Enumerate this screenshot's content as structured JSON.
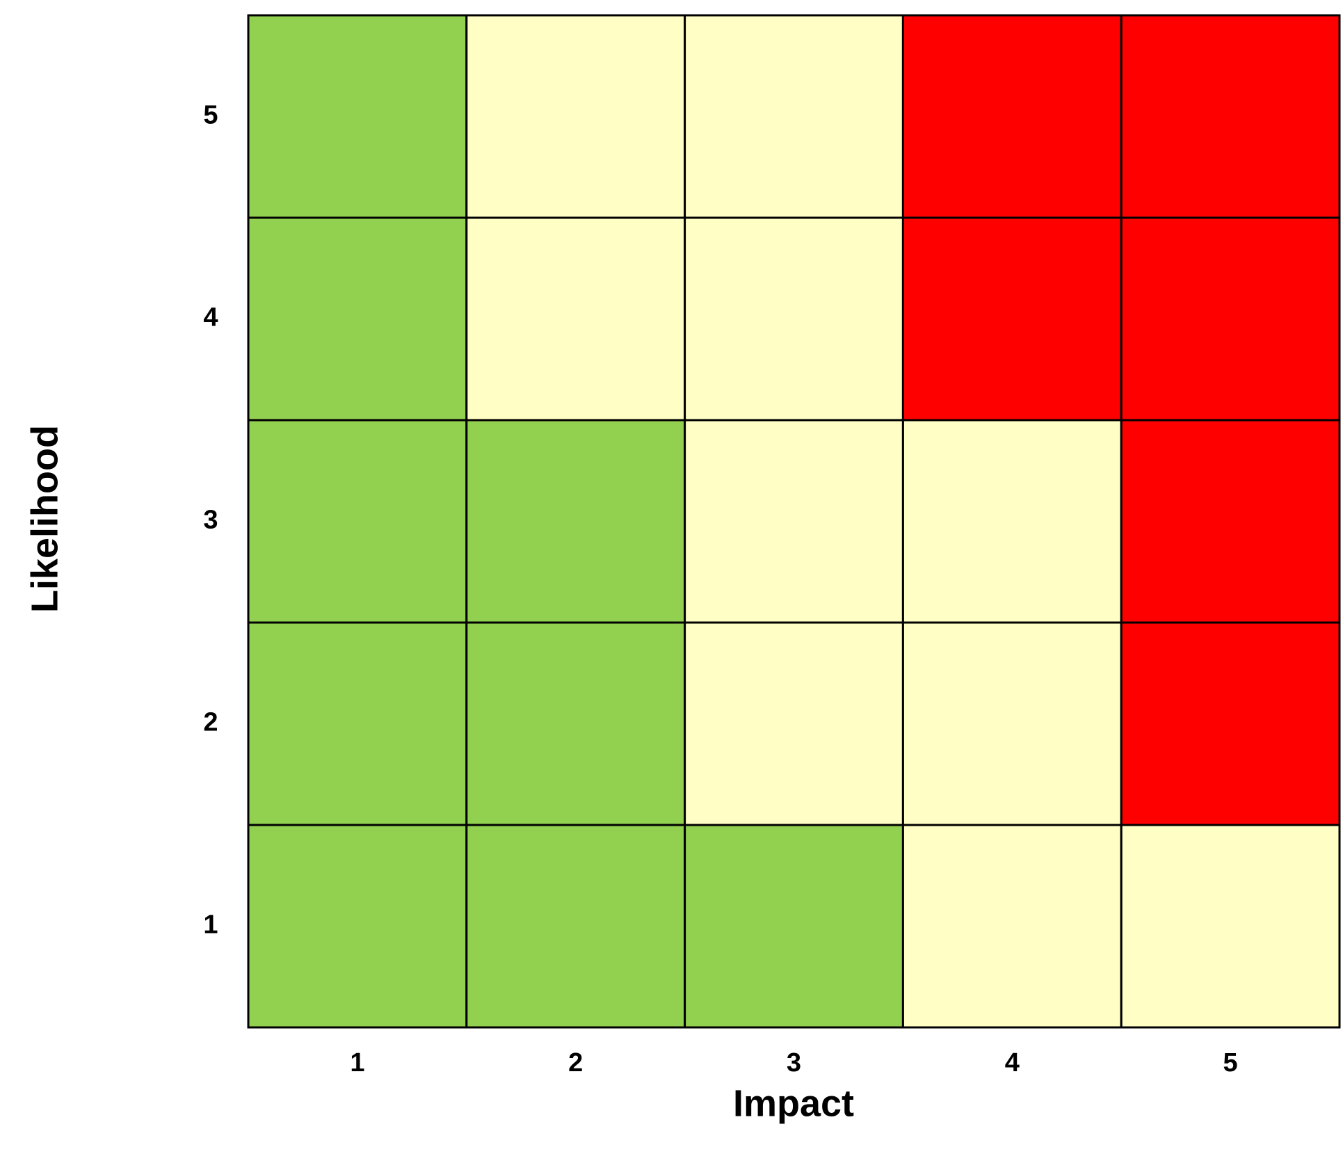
{
  "chart_data": {
    "type": "heatmap",
    "x_label": "Impact",
    "y_label": "Likelihood",
    "x_categories": [
      "1",
      "2",
      "3",
      "4",
      "5"
    ],
    "y_categories": [
      "1",
      "2",
      "3",
      "4",
      "5"
    ],
    "cell_colors": [
      [
        "#92d050",
        "#92d050",
        "#92d050",
        "#ffffc5",
        "#ffffc5"
      ],
      [
        "#92d050",
        "#92d050",
        "#ffffc5",
        "#ffffc5",
        "#ff0000"
      ],
      [
        "#92d050",
        "#92d050",
        "#ffffc5",
        "#ffffc5",
        "#ff0000"
      ],
      [
        "#92d050",
        "#ffffc5",
        "#ffffc5",
        "#ff0000",
        "#ff0000"
      ],
      [
        "#92d050",
        "#ffffc5",
        "#ffffc5",
        "#ff0000",
        "#ff0000"
      ]
    ]
  }
}
